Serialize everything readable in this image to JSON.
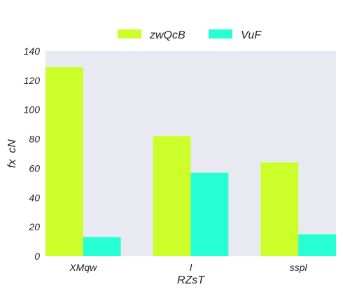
{
  "chart_data": {
    "type": "bar",
    "title": "",
    "xlabel": "RZsT",
    "ylabel": "fx  cN",
    "categories": [
      "XMqw",
      "l",
      "sspl"
    ],
    "series": [
      {
        "name": "zwQcB",
        "values": [
          129,
          82,
          64
        ],
        "color": "#ccff2a"
      },
      {
        "name": "VuF",
        "values": [
          13,
          57,
          15
        ],
        "color": "#26ffd3"
      }
    ],
    "ylim": [
      0,
      140
    ],
    "yticks": [
      0,
      20,
      40,
      60,
      80,
      100,
      120,
      140
    ],
    "grid": false,
    "legend": "top-center",
    "background": "#e9e9f1"
  }
}
